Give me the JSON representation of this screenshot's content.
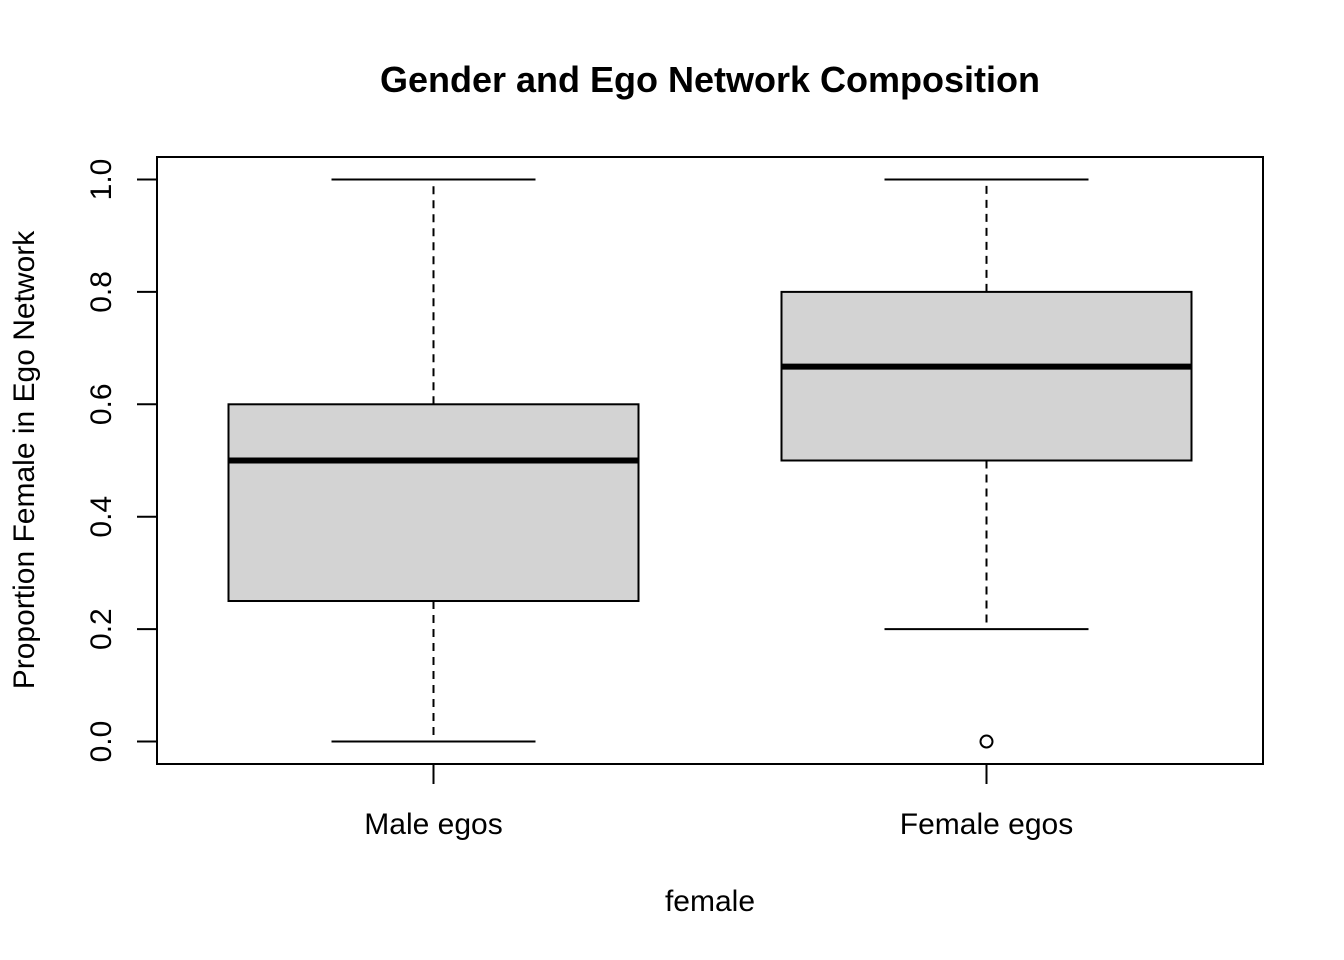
{
  "chart_data": {
    "type": "boxplot",
    "title": "Gender and Ego Network Composition",
    "xlabel": "female",
    "ylabel": "Proportion Female in Ego Network",
    "ylim": [
      -0.04,
      1.04
    ],
    "yticks": [
      0.0,
      0.2,
      0.4,
      0.6,
      0.8,
      1.0
    ],
    "ytick_labels": [
      "0.0",
      "0.2",
      "0.4",
      "0.6",
      "0.8",
      "1.0"
    ],
    "grid": false,
    "legend": "none",
    "box_fill": "#d3d3d3",
    "categories": [
      "Male egos",
      "Female egos"
    ],
    "boxes": [
      {
        "category": "Male egos",
        "whisker_low": 0.0,
        "q1": 0.25,
        "median": 0.5,
        "q3": 0.6,
        "whisker_high": 1.0,
        "outliers": []
      },
      {
        "category": "Female egos",
        "whisker_low": 0.2,
        "q1": 0.5,
        "median": 0.667,
        "q3": 0.8,
        "whisker_high": 1.0,
        "outliers": [
          0.0
        ]
      }
    ]
  }
}
